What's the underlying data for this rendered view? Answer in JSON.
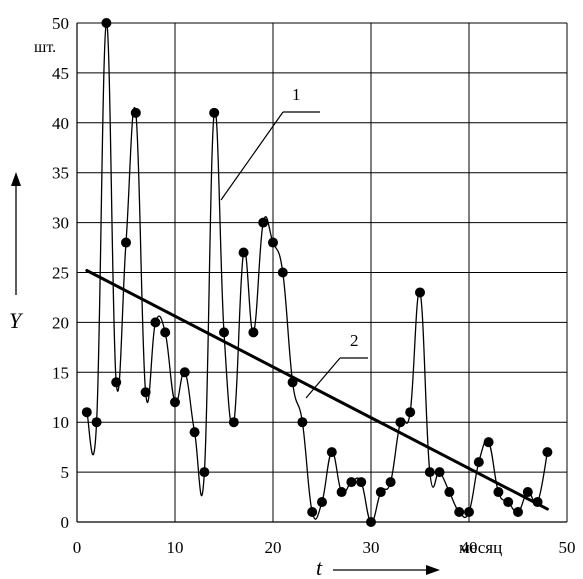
{
  "chart_data": {
    "type": "line",
    "xlabel": "t",
    "ylabel": "Y",
    "x_unit": "месяц",
    "y_unit": "шт.",
    "xlim": [
      0,
      50
    ],
    "ylim": [
      0,
      50
    ],
    "x_ticks": [
      "0",
      "10",
      "20",
      "30",
      "40",
      "50"
    ],
    "y_ticks": [
      "0",
      "5",
      "10",
      "15",
      "20",
      "25",
      "30",
      "35",
      "40",
      "45",
      "50"
    ],
    "grid": true,
    "annotations": [
      "1",
      "2"
    ],
    "series": [
      {
        "x": [
          1,
          2,
          3,
          4,
          5,
          6,
          7,
          8,
          9,
          10,
          11,
          12,
          13,
          14,
          15,
          16,
          17,
          18,
          19,
          20,
          21,
          22,
          23,
          24,
          25,
          26,
          27,
          28,
          29,
          30,
          31,
          32,
          33,
          34,
          35,
          36,
          37,
          38,
          39,
          40,
          41,
          42,
          43,
          44,
          45,
          46,
          47,
          48
        ],
        "y": [
          11,
          10,
          50,
          14,
          28,
          41,
          13,
          20,
          19,
          12,
          15,
          9,
          5,
          41,
          19,
          10,
          27,
          19,
          30,
          28,
          25,
          14,
          10,
          1,
          2,
          7,
          3,
          4,
          4,
          0,
          3,
          4,
          10,
          11,
          23,
          5,
          5,
          3,
          1,
          1,
          6,
          8,
          3,
          2,
          1,
          3,
          2,
          7
        ]
      },
      {
        "x": [
          1,
          48
        ],
        "y": [
          25.2,
          1.3
        ]
      }
    ]
  }
}
